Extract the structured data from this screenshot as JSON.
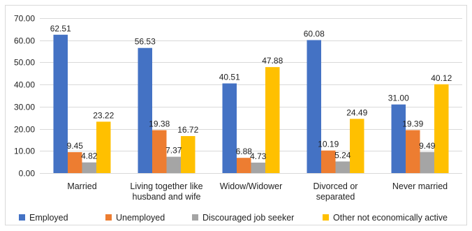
{
  "chart_data": {
    "type": "bar",
    "title": "",
    "xlabel": "",
    "ylabel": "",
    "categories": [
      [
        "Married"
      ],
      [
        "Living together like",
        "husband and wife"
      ],
      [
        "Widow/Widower"
      ],
      [
        "Divorced or",
        "separated"
      ],
      [
        "Never married"
      ]
    ],
    "series": [
      {
        "name": "Employed",
        "color": "#4472c4",
        "values": [
          62.51,
          56.53,
          40.51,
          60.08,
          31.0
        ]
      },
      {
        "name": "Unemployed",
        "color": "#ed7d31",
        "values": [
          9.45,
          19.38,
          6.88,
          10.19,
          19.39
        ]
      },
      {
        "name": "Discouraged job seeker",
        "color": "#a5a5a5",
        "values": [
          4.82,
          7.37,
          4.73,
          5.24,
          9.49
        ]
      },
      {
        "name": "Other not economically active",
        "color": "#ffc000",
        "values": [
          23.22,
          16.72,
          47.88,
          24.49,
          40.12
        ]
      }
    ],
    "ylim": [
      0,
      70
    ],
    "yticks": [
      "0.00",
      "10.00",
      "20.00",
      "30.00",
      "40.00",
      "50.00",
      "60.00",
      "70.00"
    ],
    "grid": true,
    "legend_position": "bottom"
  }
}
